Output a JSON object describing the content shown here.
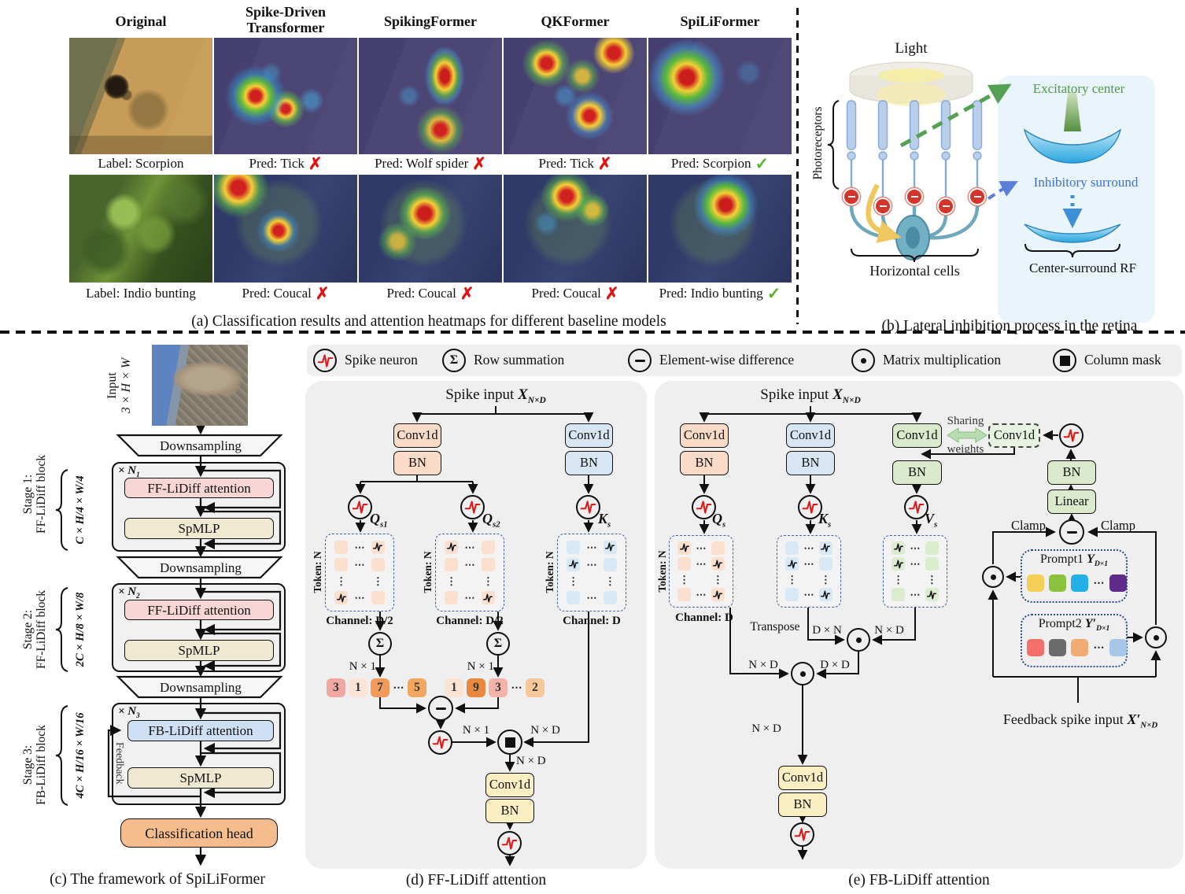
{
  "colors": {
    "q_branch": "#fadbc8",
    "k_branch": "#d7e6f2",
    "v_branch": "#dbe9cd",
    "attention_ff": "#f9d6d6",
    "attention_fb": "#cfe0f4",
    "mlp": "#efe9d2",
    "head": "#f5bd8e",
    "panel_bg": "#efefef",
    "retina_panel": "#e9f4fb",
    "excitatory_green": "#4e9b42",
    "inhibitory_blue": "#3f6fd1"
  },
  "sym": {
    "hdots": "⋯",
    "vdots": "⋮",
    "sigma": "Σ"
  },
  "panel_a": {
    "headers": [
      "Original",
      "Spike-Driven Transformer",
      "SpikingFormer",
      "QKFormer",
      "SpiLiFormer"
    ],
    "row1_label": "Label: Scorpion",
    "row1_preds": [
      "Pred: Tick",
      "Pred: Wolf spider",
      "Pred: Tick",
      "Pred: Scorpion"
    ],
    "row2_label": "Label: Indio bunting",
    "row2_preds": [
      "Pred: Coucal",
      "Pred: Coucal",
      "Pred: Coucal",
      "Pred: Indio bunting"
    ],
    "cross": "✗",
    "check": "✓",
    "caption": "(a) Classification results and attention heatmaps for different baseline models"
  },
  "panel_b": {
    "caption": "(b) Lateral inhibition process in the retina",
    "light": "Light",
    "photoreceptors": "Photoreceptors",
    "horizontal_cells": "Horizontal cells",
    "excitatory": "Excitatory center",
    "inhibitory": "Inhibitory surround",
    "rf": "Center-surround RF"
  },
  "panel_c": {
    "caption": "(c) The framework of SpiLiFormer",
    "input_line1": "Input",
    "input_line2": "3 × H × W",
    "downsampling": "Downsampling",
    "head": "Classification head",
    "feedback": "Feedback",
    "stages": [
      {
        "label1": "Stage 1:",
        "label2": "FF-LiDiff block",
        "dims": "C × H/4 × W/4",
        "mult": "× N",
        "mult_sub": "1",
        "attn": "FF-LiDiff attention",
        "mlp": "SpMLP"
      },
      {
        "label1": "Stage 2:",
        "label2": "FF-LiDiff block",
        "dims": "2C × H/8 × W/8",
        "mult": "× N",
        "mult_sub": "2",
        "attn": "FF-LiDiff attention",
        "mlp": "SpMLP"
      },
      {
        "label1": "Stage 3:",
        "label2": "FB-LiDiff block",
        "dims": "4C × H/16 × W/16",
        "mult": "× N",
        "mult_sub": "3",
        "attn": "FB-LiDiff attention",
        "mlp": "SpMLP"
      }
    ]
  },
  "legend": {
    "sigma": "Σ",
    "items": [
      {
        "icon": "spike-neuron",
        "label": "Spike neuron"
      },
      {
        "icon": "row-summation",
        "label": "Row summation"
      },
      {
        "icon": "element-wise-difference",
        "label": "Element-wise difference"
      },
      {
        "icon": "matrix-multiplication",
        "label": "Matrix multiplication"
      },
      {
        "icon": "column-mask",
        "label": "Column mask"
      }
    ]
  },
  "panel_d": {
    "caption": "(d) FF-LiDiff attention",
    "title_pre": "Spike input ",
    "title_var": "X",
    "title_sub": "N×D",
    "conv": "Conv1d",
    "bn": "BN",
    "q1_var": "Q",
    "q1_sub": "s1",
    "q2_var": "Q",
    "q2_sub": "s2",
    "k_var": "K",
    "k_sub": "s",
    "token": "Token: N",
    "channel_half": "Channel: D/2",
    "channel_full": "Channel: D",
    "n1": "N × 1",
    "nd": "N × D",
    "row1_values": [
      "3",
      "1",
      "7",
      "⋯",
      "5"
    ],
    "row2_values": [
      "1",
      "9",
      "3",
      "⋯",
      "2"
    ],
    "row1_colors": [
      "#f0a9a2",
      "#fbe3d8",
      "#f2995c",
      "",
      "#f0a75f"
    ],
    "row2_colors": [
      "#fbe3d4",
      "#e9893f",
      "#f4b3a8",
      "",
      "#f6c79b"
    ]
  },
  "panel_e": {
    "caption": "(e) FB-LiDiff attention",
    "title_pre": "Spike input ",
    "title_var": "X",
    "title_sub": "N×D",
    "conv": "Conv1d",
    "bn": "BN",
    "linear": "Linear",
    "clamp": "Clamp",
    "sharing_1": "Sharing",
    "sharing_2": "weights",
    "q_var": "Q",
    "k_var": "K",
    "v_var": "V",
    "sub_s": "s",
    "token": "Token: N",
    "channel_full": "Channel: D",
    "transpose": "Transpose",
    "dxn": "D × N",
    "nxd": "N × D",
    "dxd": "D × D",
    "prompt1_pre": "Prompt1 ",
    "prompt1_var": "Y",
    "prompt1_sub": "D×1",
    "prompt2_pre": "Prompt2 ",
    "prompt2_var": "Y′",
    "prompt2_sub": "D×1",
    "prompt1_colors": [
      "#f5cf57",
      "#8cc33c",
      "#23b0e6",
      "",
      "#5f2a8a"
    ],
    "prompt2_colors": [
      "#f4716b",
      "#6b6b6b",
      "#f0ab72",
      "",
      "#a6c7e7"
    ],
    "feedback_pre": "Feedback spike input ",
    "feedback_var": "X′",
    "feedback_sub": "N×D"
  }
}
